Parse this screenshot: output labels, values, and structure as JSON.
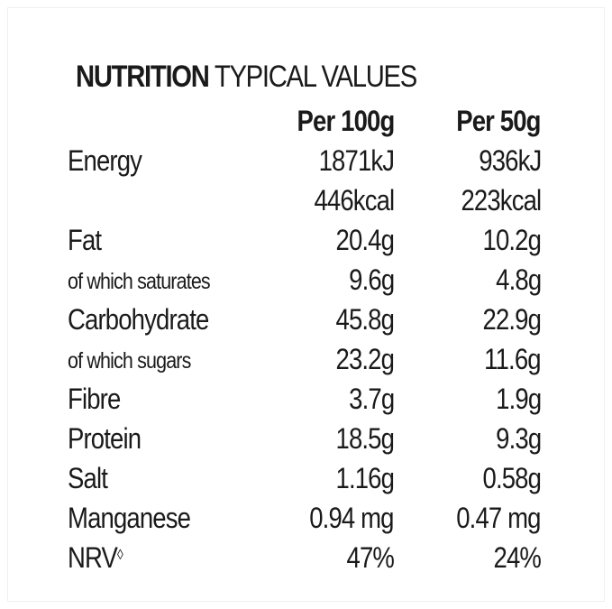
{
  "title": {
    "bold": "NUTRITION",
    "light": "TYPICAL VALUES"
  },
  "header": {
    "col100": "Per 100g",
    "col50": "Per 50g"
  },
  "rows": [
    {
      "label": "Energy",
      "per100": "1871kJ",
      "per50": "936kJ",
      "type": "main"
    },
    {
      "label": "",
      "per100": "446kcal",
      "per50": "223kcal",
      "type": "main"
    },
    {
      "label": "Fat",
      "per100": "20.4g",
      "per50": "10.2g",
      "type": "main"
    },
    {
      "label": "of which saturates",
      "per100": "9.6g",
      "per50": "4.8g",
      "type": "sub"
    },
    {
      "label": "Carbohydrate",
      "per100": "45.8g",
      "per50": "22.9g",
      "type": "main"
    },
    {
      "label": "of which sugars",
      "per100": "23.2g",
      "per50": "11.6g",
      "type": "sub"
    },
    {
      "label": "Fibre",
      "per100": "3.7g",
      "per50": "1.9g",
      "type": "main"
    },
    {
      "label": "Protein",
      "per100": "18.5g",
      "per50": "9.3g",
      "type": "main"
    },
    {
      "label": "Salt",
      "per100": "1.16g",
      "per50": "0.58g",
      "type": "main"
    },
    {
      "label": "Manganese",
      "per100": "0.94 mg",
      "per50": "0.47 mg",
      "type": "main"
    },
    {
      "label": "NRV",
      "label_mark": "◊",
      "per100": "47%",
      "per50": "24%",
      "type": "main"
    }
  ]
}
